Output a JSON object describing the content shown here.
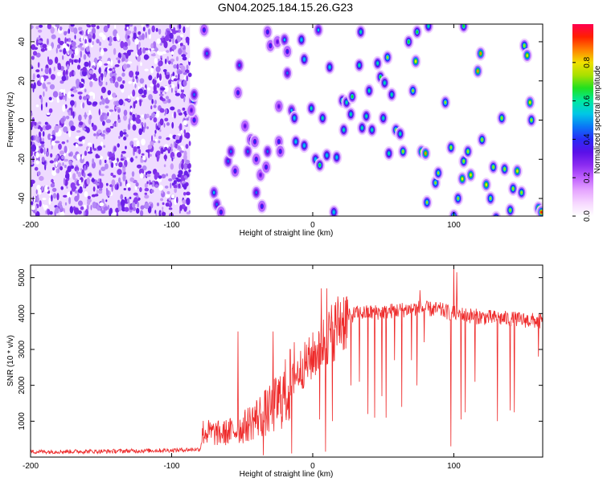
{
  "title": "GN04.2025.184.15.26.G23",
  "chart_data": [
    {
      "type": "heatmap",
      "name": "spectrogram",
      "xlabel": "Height of straight line (km)",
      "ylabel": "Frequency (Hz)",
      "xlim": [
        -200,
        163
      ],
      "ylim": [
        -49,
        49
      ],
      "x_ticks": [
        -200,
        -100,
        0,
        100
      ],
      "y_ticks": [
        -40,
        -20,
        0,
        20,
        40
      ],
      "colorbar": {
        "label": "Normalized spectral amplitude",
        "range": [
          0,
          1
        ],
        "ticks": [
          "0.0",
          "0.2",
          "0.4",
          "0.6",
          "0.8"
        ],
        "colors": [
          "#ffffff",
          "#f6d8ff",
          "#e6a6ff",
          "#c060ff",
          "#8a2bf0",
          "#5a10e8",
          "#2a2cf6",
          "#0a78f6",
          "#00c8e6",
          "#00e8a0",
          "#20e020",
          "#a8e000",
          "#f0e000",
          "#ff8000",
          "#ff2000",
          "#ff0050"
        ]
      },
      "noise_region_x": [
        -200,
        -87
      ],
      "clusters": [
        {
          "x": -85,
          "y": 10,
          "a": 0.5
        },
        {
          "x": -84,
          "y": 13,
          "a": 0.45
        },
        {
          "x": -84,
          "y": 0,
          "a": 0.4
        },
        {
          "x": -86,
          "y": 5,
          "a": 0.35
        },
        {
          "x": -77,
          "y": 46,
          "a": 0.4
        },
        {
          "x": -75,
          "y": 34,
          "a": 0.45
        },
        {
          "x": -70,
          "y": -37,
          "a": 0.5
        },
        {
          "x": -68,
          "y": -43,
          "a": 0.45
        },
        {
          "x": -65,
          "y": -47,
          "a": 0.4
        },
        {
          "x": -60,
          "y": -21,
          "a": 0.45
        },
        {
          "x": -58,
          "y": -16,
          "a": 0.45
        },
        {
          "x": -55,
          "y": -26,
          "a": 0.4
        },
        {
          "x": -53,
          "y": 14,
          "a": 0.4
        },
        {
          "x": -52,
          "y": 28,
          "a": 0.45
        },
        {
          "x": -48,
          "y": -3,
          "a": 0.35
        },
        {
          "x": -46,
          "y": -16,
          "a": 0.45
        },
        {
          "x": -44,
          "y": -10,
          "a": 0.4
        },
        {
          "x": -41,
          "y": -11,
          "a": 0.4
        },
        {
          "x": -40,
          "y": -37,
          "a": 0.45
        },
        {
          "x": -40,
          "y": -20,
          "a": 0.4
        },
        {
          "x": -37,
          "y": -28,
          "a": 0.35
        },
        {
          "x": -36,
          "y": -44,
          "a": 0.4
        },
        {
          "x": -33,
          "y": -24,
          "a": 0.4
        },
        {
          "x": -32,
          "y": -16,
          "a": 0.45
        },
        {
          "x": -32,
          "y": 45,
          "a": 0.4
        },
        {
          "x": -30,
          "y": 38,
          "a": 0.4
        },
        {
          "x": -25,
          "y": 40,
          "a": 0.35
        },
        {
          "x": -24,
          "y": 7,
          "a": 0.35
        },
        {
          "x": -24,
          "y": -11,
          "a": 0.4
        },
        {
          "x": -23,
          "y": -16,
          "a": 0.4
        },
        {
          "x": -20,
          "y": 41,
          "a": 0.5
        },
        {
          "x": -18,
          "y": 35,
          "a": 0.4
        },
        {
          "x": -18,
          "y": 24,
          "a": 0.45
        },
        {
          "x": -15,
          "y": 5,
          "a": 0.5
        },
        {
          "x": -13,
          "y": 1,
          "a": 0.55
        },
        {
          "x": -12,
          "y": -11,
          "a": 0.55
        },
        {
          "x": -8,
          "y": 41,
          "a": 0.55
        },
        {
          "x": -6,
          "y": 31,
          "a": 0.55
        },
        {
          "x": -6,
          "y": -13,
          "a": 0.55
        },
        {
          "x": -1,
          "y": 6,
          "a": 0.6
        },
        {
          "x": 2,
          "y": -20,
          "a": 0.55
        },
        {
          "x": 4,
          "y": 46,
          "a": 0.5
        },
        {
          "x": 5,
          "y": -23,
          "a": 0.65
        },
        {
          "x": 7,
          "y": 1,
          "a": 0.6
        },
        {
          "x": 10,
          "y": -18,
          "a": 0.55
        },
        {
          "x": 12,
          "y": 27,
          "a": 0.55
        },
        {
          "x": 15,
          "y": -47,
          "a": 0.55
        },
        {
          "x": 17,
          "y": -19,
          "a": 0.55
        },
        {
          "x": 21,
          "y": 10,
          "a": 0.65
        },
        {
          "x": 22,
          "y": -5,
          "a": 0.6
        },
        {
          "x": 24,
          "y": 9,
          "a": 0.6
        },
        {
          "x": 27,
          "y": 3,
          "a": 0.6
        },
        {
          "x": 28,
          "y": 12,
          "a": 0.65
        },
        {
          "x": 33,
          "y": 28,
          "a": 0.6
        },
        {
          "x": 34,
          "y": 45,
          "a": 0.6
        },
        {
          "x": 35,
          "y": -4,
          "a": 0.6
        },
        {
          "x": 38,
          "y": 2,
          "a": 0.6
        },
        {
          "x": 40,
          "y": 15,
          "a": 0.6
        },
        {
          "x": 42,
          "y": -5,
          "a": 0.6
        },
        {
          "x": 46,
          "y": 29,
          "a": 0.6
        },
        {
          "x": 48,
          "y": 22,
          "a": 0.65
        },
        {
          "x": 50,
          "y": 1,
          "a": 0.6
        },
        {
          "x": 51,
          "y": 19,
          "a": 0.6
        },
        {
          "x": 53,
          "y": 32,
          "a": 0.7
        },
        {
          "x": 54,
          "y": -17,
          "a": 0.6
        },
        {
          "x": 56,
          "y": 13,
          "a": 0.6
        },
        {
          "x": 59,
          "y": -5,
          "a": 0.7
        },
        {
          "x": 62,
          "y": -7,
          "a": 0.6
        },
        {
          "x": 64,
          "y": -16,
          "a": 0.75
        },
        {
          "x": 68,
          "y": 40,
          "a": 0.65
        },
        {
          "x": 71,
          "y": 15,
          "a": 0.7
        },
        {
          "x": 73,
          "y": 30,
          "a": 0.8
        },
        {
          "x": 74,
          "y": 45,
          "a": 0.65
        },
        {
          "x": 77,
          "y": -16,
          "a": 0.8
        },
        {
          "x": 80,
          "y": -17,
          "a": 0.85
        },
        {
          "x": 81,
          "y": -42,
          "a": 0.7
        },
        {
          "x": 82,
          "y": 48,
          "a": 0.6
        },
        {
          "x": 87,
          "y": -32,
          "a": 0.7
        },
        {
          "x": 89,
          "y": -27,
          "a": 0.7
        },
        {
          "x": 94,
          "y": 9,
          "a": 0.7
        },
        {
          "x": 98,
          "y": -14,
          "a": 0.75
        },
        {
          "x": 100,
          "y": -49,
          "a": 0.7
        },
        {
          "x": 103,
          "y": -40,
          "a": 0.7
        },
        {
          "x": 106,
          "y": -30,
          "a": 0.8
        },
        {
          "x": 107,
          "y": -21,
          "a": 0.75
        },
        {
          "x": 107,
          "y": 48,
          "a": 0.65
        },
        {
          "x": 110,
          "y": -16,
          "a": 0.75
        },
        {
          "x": 112,
          "y": -28,
          "a": 0.8
        },
        {
          "x": 117,
          "y": 25,
          "a": 0.85
        },
        {
          "x": 119,
          "y": 34,
          "a": 0.85
        },
        {
          "x": 120,
          "y": -10,
          "a": 0.75
        },
        {
          "x": 123,
          "y": -33,
          "a": 0.8
        },
        {
          "x": 126,
          "y": -40,
          "a": 0.7
        },
        {
          "x": 128,
          "y": -24,
          "a": 0.75
        },
        {
          "x": 130,
          "y": -50,
          "a": 0.7
        },
        {
          "x": 134,
          "y": 1,
          "a": 0.75
        },
        {
          "x": 136,
          "y": -25,
          "a": 0.75
        },
        {
          "x": 140,
          "y": -46,
          "a": 0.75
        },
        {
          "x": 142,
          "y": -35,
          "a": 0.75
        },
        {
          "x": 145,
          "y": -26,
          "a": 0.8
        },
        {
          "x": 148,
          "y": -37,
          "a": 0.75
        },
        {
          "x": 150,
          "y": 38,
          "a": 0.75
        },
        {
          "x": 152,
          "y": 33,
          "a": 0.8
        },
        {
          "x": 154,
          "y": 9,
          "a": 0.8
        },
        {
          "x": 155,
          "y": 0,
          "a": 0.75
        },
        {
          "x": 160,
          "y": -45,
          "a": 0.85
        },
        {
          "x": 162,
          "y": -47,
          "a": 0.9
        }
      ]
    },
    {
      "type": "line",
      "name": "snr",
      "xlabel": "Height of straight line (km)",
      "ylabel": "SNR (10 * v/v)",
      "xlim": [
        -200,
        163
      ],
      "ylim": [
        0,
        5350
      ],
      "x_ticks": [
        -200,
        -100,
        0,
        100
      ],
      "y_ticks": [
        1000,
        2000,
        3000,
        4000,
        5000
      ],
      "color": "#ee2a2a",
      "envelope": [
        {
          "x": -200,
          "y": 150
        },
        {
          "x": -150,
          "y": 160
        },
        {
          "x": -100,
          "y": 190
        },
        {
          "x": -80,
          "y": 220
        },
        {
          "x": -78,
          "y": 700
        },
        {
          "x": -65,
          "y": 650
        },
        {
          "x": -50,
          "y": 800
        },
        {
          "x": -40,
          "y": 1100
        },
        {
          "x": -30,
          "y": 1300
        },
        {
          "x": -20,
          "y": 1750
        },
        {
          "x": -10,
          "y": 2400
        },
        {
          "x": 0,
          "y": 2800
        },
        {
          "x": 10,
          "y": 3300
        },
        {
          "x": 20,
          "y": 3800
        },
        {
          "x": 30,
          "y": 4000
        },
        {
          "x": 50,
          "y": 4050
        },
        {
          "x": 75,
          "y": 4150
        },
        {
          "x": 90,
          "y": 4100
        },
        {
          "x": 100,
          "y": 4000
        },
        {
          "x": 120,
          "y": 3900
        },
        {
          "x": 140,
          "y": 3850
        },
        {
          "x": 163,
          "y": 3780
        }
      ],
      "spikes": [
        {
          "x": -53,
          "y": 3500
        },
        {
          "x": -28,
          "y": 3500
        },
        {
          "x": -13,
          "y": 3200
        },
        {
          "x": 6,
          "y": 4700
        },
        {
          "x": 10,
          "y": 4700
        },
        {
          "x": 76,
          "y": 4650
        },
        {
          "x": 100,
          "y": 5350
        },
        {
          "x": 102,
          "y": 5150
        }
      ],
      "dips": [
        {
          "x": -35,
          "y": 50
        },
        {
          "x": -15,
          "y": 100
        },
        {
          "x": 5,
          "y": 1050
        },
        {
          "x": 9,
          "y": 150
        },
        {
          "x": 14,
          "y": 1000
        },
        {
          "x": 27,
          "y": 2000
        },
        {
          "x": 33,
          "y": 2100
        },
        {
          "x": 39,
          "y": 1200
        },
        {
          "x": 44,
          "y": 1100
        },
        {
          "x": 49,
          "y": 1700
        },
        {
          "x": 52,
          "y": 1100
        },
        {
          "x": 58,
          "y": 2700
        },
        {
          "x": 63,
          "y": 1400
        },
        {
          "x": 70,
          "y": 2700
        },
        {
          "x": 74,
          "y": 2000
        },
        {
          "x": 79,
          "y": 3200
        },
        {
          "x": 98,
          "y": 300
        },
        {
          "x": 105,
          "y": 1050
        },
        {
          "x": 108,
          "y": 1250
        },
        {
          "x": 115,
          "y": 2100
        },
        {
          "x": 131,
          "y": 1000
        },
        {
          "x": 140,
          "y": 1300
        },
        {
          "x": 143,
          "y": 1250
        },
        {
          "x": 160,
          "y": 2800
        }
      ]
    }
  ]
}
